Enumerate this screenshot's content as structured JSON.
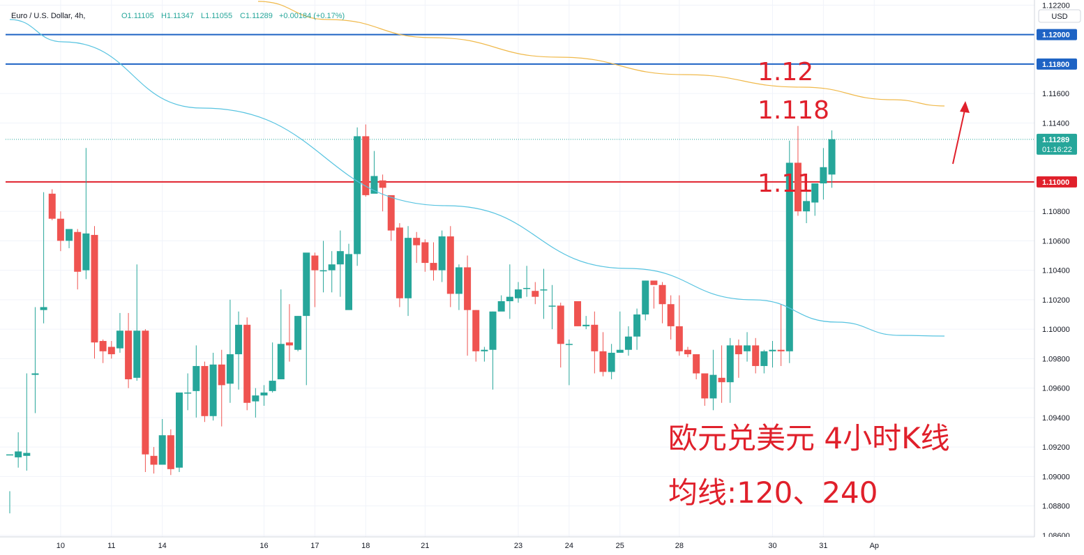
{
  "header": {
    "symbol": "Euro / U.S. Dollar, 4h,",
    "open": "O1.11105",
    "high": "H1.11347",
    "low": "L1.11055",
    "close": "C1.11289",
    "change": "+0.00184 (+0.17%)"
  },
  "currency_button": "USD",
  "price_axis": {
    "ticks": [
      "1.12200",
      "1.11600",
      "1.11400",
      "1.10800",
      "1.10600",
      "1.10400",
      "1.10200",
      "1.10000",
      "1.09800",
      "1.09600",
      "1.09400",
      "1.09200",
      "1.09000",
      "1.08800",
      "1.08600"
    ],
    "min": 1.0859,
    "max": 1.12235
  },
  "price_labels": [
    {
      "text": "1.12000",
      "value": 1.12,
      "color": "#1e63c4"
    },
    {
      "text": "1.11800",
      "value": 1.118,
      "color": "#1e63c4"
    },
    {
      "text": "1.11000",
      "value": 1.11,
      "color": "#e0202b"
    }
  ],
  "last_price": {
    "price": "1.11289",
    "countdown": "01:16:22",
    "value": 1.11289,
    "color": "#26a69a"
  },
  "date_axis": [
    {
      "label": "10",
      "bar": 6
    },
    {
      "label": "11",
      "bar": 12
    },
    {
      "label": "14",
      "bar": 18
    },
    {
      "label": "16",
      "bar": 30
    },
    {
      "label": "17",
      "bar": 36
    },
    {
      "label": "18",
      "bar": 42
    },
    {
      "label": "21",
      "bar": 49
    },
    {
      "label": "23",
      "bar": 60
    },
    {
      "label": "24",
      "bar": 66
    },
    {
      "label": "25",
      "bar": 72
    },
    {
      "label": "28",
      "bar": 79
    },
    {
      "label": "30",
      "bar": 90
    },
    {
      "label": "31",
      "bar": 96
    },
    {
      "label": "Ap",
      "bar": 102
    }
  ],
  "annotations": {
    "level_112": "1.12",
    "level_1118": "1.118",
    "level_111": "1.11",
    "caption_line1": "欧元兑美元 4小时K线",
    "caption_line2": "均线:120、240"
  },
  "colors": {
    "up": "#26a69a",
    "down": "#ef5350",
    "ma120": "#56c3e0",
    "ma240": "#f0b94a",
    "level_blue": "#1e63c4",
    "level_red": "#e0202b"
  },
  "chart_data": {
    "type": "candlestick",
    "symbol": "EURUSD",
    "timeframe": "4h",
    "x_labels": [
      "10",
      "11",
      "14",
      "16",
      "17",
      "18",
      "21",
      "23",
      "24",
      "25",
      "28",
      "30",
      "31",
      "Ap"
    ],
    "ylim": [
      1.0859,
      1.12235
    ],
    "horizontal_levels": [
      1.12,
      1.118,
      1.11
    ],
    "candles": [
      [
        1.0915,
        1.089,
        1.0915,
        1.0875
      ],
      [
        1.0913,
        1.093,
        1.0917,
        1.0906
      ],
      [
        1.0914,
        1.097,
        1.0916,
        1.0904
      ],
      [
        1.0969,
        1.1015,
        1.097,
        1.0943
      ],
      [
        1.1013,
        1.1093,
        1.1015,
        1.1004
      ],
      [
        1.1092,
        1.1095,
        1.1075,
        1.1074
      ],
      [
        1.1075,
        1.108,
        1.106,
        1.1053
      ],
      [
        1.106,
        1.1066,
        1.1068,
        1.1055
      ],
      [
        1.1066,
        1.1068,
        1.1039,
        1.1027
      ],
      [
        1.104,
        1.1123,
        1.1065,
        1.1034
      ],
      [
        1.1064,
        1.107,
        1.0991,
        1.098
      ],
      [
        1.0992,
        1.0993,
        1.0985,
        1.0977
      ],
      [
        1.0988,
        1.0992,
        1.0983,
        1.098
      ],
      [
        1.0987,
        1.1011,
        1.0999,
        1.0984
      ],
      [
        1.0999,
        1.1011,
        1.0966,
        1.096
      ],
      [
        1.0967,
        1.1044,
        1.0999,
        1.0965
      ],
      [
        1.0999,
        1.1,
        1.0915,
        1.0903
      ],
      [
        1.0914,
        1.092,
        1.0908,
        1.0902
      ],
      [
        1.0908,
        1.0939,
        1.0928,
        1.0915
      ],
      [
        1.0928,
        1.0932,
        1.0905,
        1.0901
      ],
      [
        1.0906,
        1.0957,
        1.0957,
        1.0903
      ],
      [
        1.0957,
        1.097,
        1.0957,
        1.0945
      ],
      [
        1.0958,
        1.0989,
        1.0975,
        1.094
      ],
      [
        1.0975,
        1.0978,
        1.0941,
        1.0937
      ],
      [
        1.0941,
        1.0984,
        1.0976,
        1.0938
      ],
      [
        1.0976,
        1.0986,
        1.0962,
        1.0934
      ],
      [
        1.0963,
        1.102,
        1.0983,
        1.095
      ],
      [
        1.0983,
        1.1012,
        1.1003,
        1.0959
      ],
      [
        1.1003,
        1.1008,
        1.095,
        1.0945
      ],
      [
        1.0951,
        1.096,
        1.0955,
        1.094
      ],
      [
        1.0955,
        1.0962,
        1.0957,
        1.0948
      ],
      [
        1.0958,
        1.0991,
        1.0965,
        1.0957
      ],
      [
        1.0966,
        1.1027,
        1.099,
        1.0973
      ],
      [
        1.0991,
        1.1017,
        1.0989,
        1.0978
      ],
      [
        1.0986,
        1.1009,
        1.1009,
        1.0985
      ],
      [
        1.1009,
        1.1038,
        1.1052,
        1.0962
      ],
      [
        1.105,
        1.1052,
        1.104,
        1.1015
      ],
      [
        1.104,
        1.106,
        1.104,
        1.1025
      ],
      [
        1.104,
        1.1053,
        1.1044,
        1.1025
      ],
      [
        1.1044,
        1.1067,
        1.1053,
        1.1022
      ],
      [
        1.1013,
        1.1058,
        1.1051,
        1.1045
      ],
      [
        1.1051,
        1.1137,
        1.1131,
        1.1043
      ],
      [
        1.1131,
        1.1139,
        1.1091,
        1.109
      ],
      [
        1.1092,
        1.1121,
        1.1104,
        1.1096
      ],
      [
        1.1101,
        1.1105,
        1.1096,
        1.108
      ],
      [
        1.1091,
        1.1082,
        1.1067,
        1.106
      ],
      [
        1.1069,
        1.1072,
        1.1021,
        1.1015
      ],
      [
        1.1021,
        1.107,
        1.1062,
        1.1009
      ],
      [
        1.1062,
        1.1066,
        1.1057,
        1.1045
      ],
      [
        1.1059,
        1.1061,
        1.1045,
        1.1039
      ],
      [
        1.1045,
        1.1059,
        1.104,
        1.1033
      ],
      [
        1.104,
        1.1067,
        1.1063,
        1.1032
      ],
      [
        1.1063,
        1.107,
        1.1024,
        1.1015
      ],
      [
        1.1024,
        1.1044,
        1.1042,
        1.1013
      ],
      [
        1.1042,
        1.105,
        1.1013,
        1.0982
      ],
      [
        1.1013,
        1.1013,
        1.0985,
        1.0978
      ],
      [
        1.0985,
        1.0988,
        1.0986,
        1.0978
      ],
      [
        1.0986,
        1.1012,
        1.1012,
        1.0959
      ],
      [
        1.1012,
        1.1023,
        1.1019,
        1.1015
      ],
      [
        1.1019,
        1.1044,
        1.1022,
        1.1007
      ],
      [
        1.1021,
        1.1032,
        1.1027,
        1.1018
      ],
      [
        1.1028,
        1.1043,
        1.1028,
        1.1022
      ],
      [
        1.1026,
        1.1032,
        1.1022,
        1.1017
      ],
      [
        1.1027,
        1.1041,
        1.1027,
        1.1007
      ],
      [
        1.1016,
        1.103,
        1.1016,
        1.1
      ],
      [
        1.1016,
        1.1018,
        1.099,
        1.0974
      ],
      [
        1.099,
        1.0993,
        1.099,
        1.0962
      ],
      [
        1.1019,
        1.1003,
        1.1002,
        1.1002
      ],
      [
        1.1002,
        1.1009,
        1.1003,
        1.1
      ],
      [
        1.1003,
        1.1012,
        1.0985,
        1.097
      ],
      [
        1.0985,
        1.0998,
        1.0971,
        1.0968
      ],
      [
        1.0971,
        1.099,
        1.0984,
        1.0966
      ],
      [
        1.0984,
        1.1012,
        1.0986,
        1.0984
      ],
      [
        1.0986,
        1.1002,
        1.0995,
        1.0982
      ],
      [
        1.0995,
        1.1014,
        1.101,
        1.0986
      ],
      [
        1.101,
        1.1033,
        1.1033,
        1.1006
      ],
      [
        1.1033,
        1.1029,
        1.103,
        1.1014
      ],
      [
        1.103,
        1.1032,
        1.1017,
        1.1004
      ],
      [
        1.1017,
        1.1023,
        1.1002,
        1.0993
      ],
      [
        1.1002,
        1.1023,
        1.0985,
        1.0982
      ],
      [
        1.0986,
        1.0988,
        1.0983,
        1.0981
      ],
      [
        1.0983,
        1.0983,
        1.097,
        1.0966
      ],
      [
        1.097,
        1.097,
        1.0953,
        1.0948
      ],
      [
        1.0953,
        1.0986,
        1.0969,
        1.0945
      ],
      [
        1.0967,
        1.0989,
        1.0964,
        1.095
      ],
      [
        1.0964,
        1.0994,
        1.0989,
        1.095
      ],
      [
        1.0989,
        1.0993,
        1.0983,
        1.0967
      ],
      [
        1.0985,
        1.0998,
        1.0989,
        1.0978
      ],
      [
        1.0989,
        1.0994,
        1.0975,
        1.097
      ],
      [
        1.0975,
        1.0986,
        1.0985,
        1.097
      ],
      [
        1.0985,
        1.0992,
        1.0986,
        1.0974
      ],
      [
        1.0986,
        1.1017,
        1.0985,
        1.0975
      ],
      [
        1.0985,
        1.1128,
        1.1113,
        1.0977
      ],
      [
        1.1113,
        1.1138,
        1.108,
        1.1077
      ],
      [
        1.108,
        1.1095,
        1.1087,
        1.1072
      ],
      [
        1.1086,
        1.1099,
        1.1099,
        1.1077
      ],
      [
        1.1099,
        1.1123,
        1.111,
        1.1088
      ],
      [
        1.1105,
        1.1135,
        1.1129,
        1.1096
      ]
    ]
  }
}
